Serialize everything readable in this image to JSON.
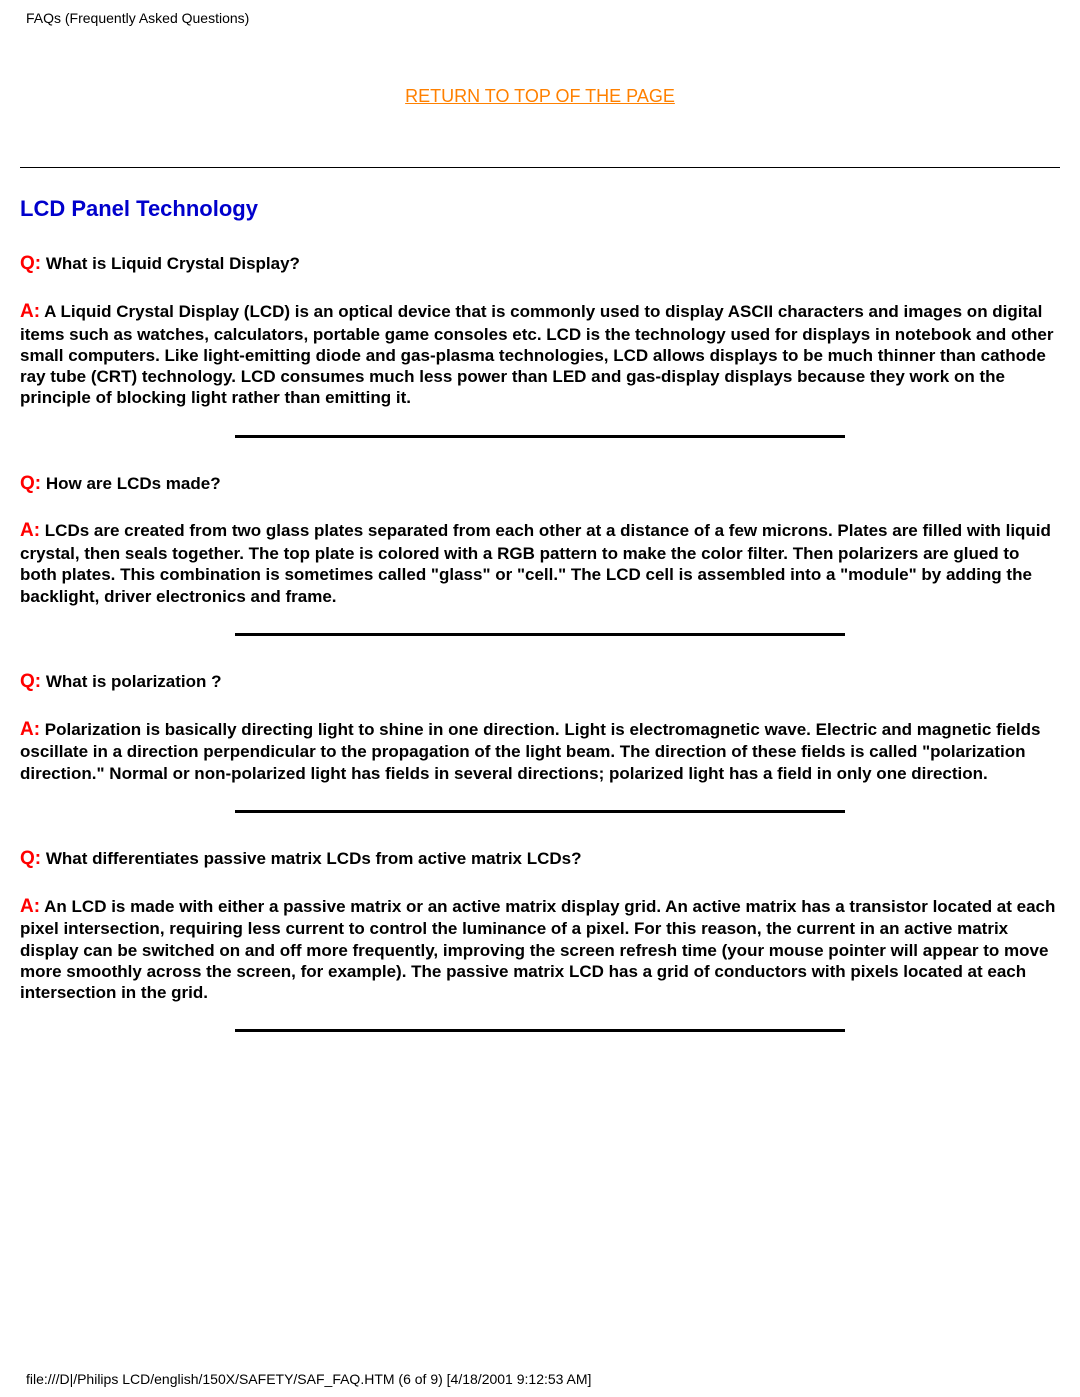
{
  "header": {
    "title": "FAQs (Frequently Asked Questions)"
  },
  "return_link": {
    "label": "RETURN TO TOP OF THE PAGE"
  },
  "section": {
    "title": "LCD Panel Technology"
  },
  "qa": [
    {
      "q_prefix": "Q:",
      "q_text": " What is Liquid Crystal Display?",
      "a_prefix": "A:",
      "a_text": " A Liquid Crystal Display (LCD) is an optical device that is commonly used to display ASCII characters and images on digital items such as watches, calculators, portable game consoles etc. LCD is the technology used for displays in notebook and other small computers. Like light-emitting diode and gas-plasma technologies, LCD allows displays to be much thinner than cathode ray tube (CRT) technology. LCD consumes much less power than LED and gas-display displays because they work on the principle of blocking light rather than emitting it."
    },
    {
      "q_prefix": "Q:",
      "q_text": " How are LCDs made?",
      "a_prefix": "A:",
      "a_text": " LCDs are created from two glass plates separated from each other at a distance of a few microns. Plates are filled with liquid crystal, then seals together. The top plate is colored with a RGB pattern to make the color filter. Then polarizers are glued to both plates. This combination is sometimes called \"glass\" or \"cell.\" The LCD cell is assembled into a \"module\" by adding the backlight, driver electronics and frame."
    },
    {
      "q_prefix": "Q:",
      "q_text": " What is polarization ?",
      "a_prefix": "A:",
      "a_text": " Polarization is basically directing light to shine in one direction. Light is electromagnetic wave. Electric and magnetic fields oscillate in a direction perpendicular to the propagation of the light beam. The direction of these fields is called \"polarization direction.\" Normal or non-polarized light has fields in several directions; polarized light has a field in only one direction."
    },
    {
      "q_prefix": "Q:",
      "q_text": " What differentiates passive matrix LCDs from active matrix LCDs?",
      "a_prefix": "A:",
      "a_text": " An LCD is made with either a passive matrix or an active matrix display grid. An active matrix has a transistor located at each pixel intersection, requiring less current to control the luminance of a pixel. For this reason, the current in an active matrix display can be switched on and off more frequently, improving the screen refresh time (your mouse pointer will appear to move more smoothly across the screen, for example). The passive matrix LCD has a grid of conductors with pixels located at each intersection in the grid."
    }
  ],
  "footer": {
    "text": "file:///D|/Philips LCD/english/150X/SAFETY/SAF_FAQ.HTM (6 of 9) [4/18/2001 9:12:53 AM]"
  },
  "colors": {
    "link": "#ff8000",
    "heading": "#0000cc",
    "prefix": "#ff0000",
    "text": "#000000",
    "background": "#ffffff"
  }
}
